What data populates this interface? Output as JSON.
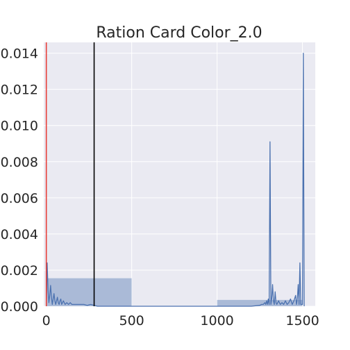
{
  "chart_data": {
    "type": "histogram",
    "title": "Ration Card Color_2.0",
    "xlabel": "",
    "ylabel": "",
    "xlim": [
      -15,
      1575
    ],
    "ylim": [
      0,
      0.0146
    ],
    "x_ticks": [
      0,
      500,
      1000,
      1500
    ],
    "x_tick_labels": [
      "0",
      "500",
      "1000",
      "1500"
    ],
    "y_ticks": [
      0,
      0.002,
      0.004,
      0.006,
      0.008,
      0.01,
      0.012,
      0.014
    ],
    "y_tick_labels": [
      "0.000",
      "0.002",
      "0.004",
      "0.006",
      "0.008",
      "0.010",
      "0.012",
      "0.014"
    ],
    "grid": true,
    "background": "#eaeaf2",
    "histogram": {
      "color": "#4c72b0",
      "bins": [
        {
          "x0": 0,
          "x1": 500,
          "density": 0.00155
        },
        {
          "x0": 500,
          "x1": 1000,
          "density": 0.0
        },
        {
          "x0": 1000,
          "x1": 1500,
          "density": 0.00035
        }
      ]
    },
    "density_curve": {
      "color": "#4c72b0",
      "x": [
        0,
        5,
        10,
        15,
        20,
        25,
        30,
        35,
        40,
        45,
        50,
        55,
        60,
        65,
        70,
        75,
        80,
        85,
        90,
        95,
        100,
        110,
        120,
        130,
        140,
        150,
        160,
        180,
        200,
        220,
        240,
        260,
        280,
        300,
        1200,
        1250,
        1260,
        1270,
        1280,
        1285,
        1290,
        1295,
        1300,
        1305,
        1310,
        1315,
        1320,
        1325,
        1330,
        1335,
        1340,
        1345,
        1350,
        1360,
        1370,
        1380,
        1390,
        1400,
        1410,
        1420,
        1430,
        1440,
        1450,
        1460,
        1465,
        1470,
        1475,
        1480,
        1485,
        1490,
        1495,
        1500,
        1505,
        1510
      ],
      "y": [
        0,
        0.0024,
        0.0009,
        0.0002,
        0.0006,
        0.00115,
        0.0005,
        0.0001,
        0.0004,
        0.0007,
        0.0003,
        0.0001,
        0.0003,
        0.0005,
        0.0002,
        0.0001,
        0.0003,
        0.0004,
        0.0001,
        0.0002,
        0.0003,
        0.0001,
        0.0002,
        0.0001,
        0.0002,
        0.0001,
        0.0001,
        0.0001,
        0.0001,
        0.0001,
        5e-05,
        0.0001,
        5e-05,
        0.0,
        0.0,
        5e-05,
        0.0001,
        0.0001,
        0.0002,
        0.0001,
        0.0003,
        0.0001,
        0.0004,
        0.0001,
        0.0091,
        0.0001,
        0.0004,
        0.0012,
        0.0003,
        0.0001,
        0.0008,
        0.0002,
        0.0001,
        0.0003,
        0.0001,
        0.0002,
        0.0001,
        0.0003,
        0.0001,
        0.0002,
        0.0004,
        0.0001,
        0.0003,
        0.0006,
        0.0001,
        0.0004,
        0.0012,
        0.0001,
        0.0024,
        0.0001,
        0.0001,
        0.0001,
        0.014,
        0.0
      ]
    },
    "vertical_lines": [
      {
        "x": 0,
        "color": "#e8403a"
      },
      {
        "x": 280,
        "color": "#000000"
      }
    ]
  }
}
